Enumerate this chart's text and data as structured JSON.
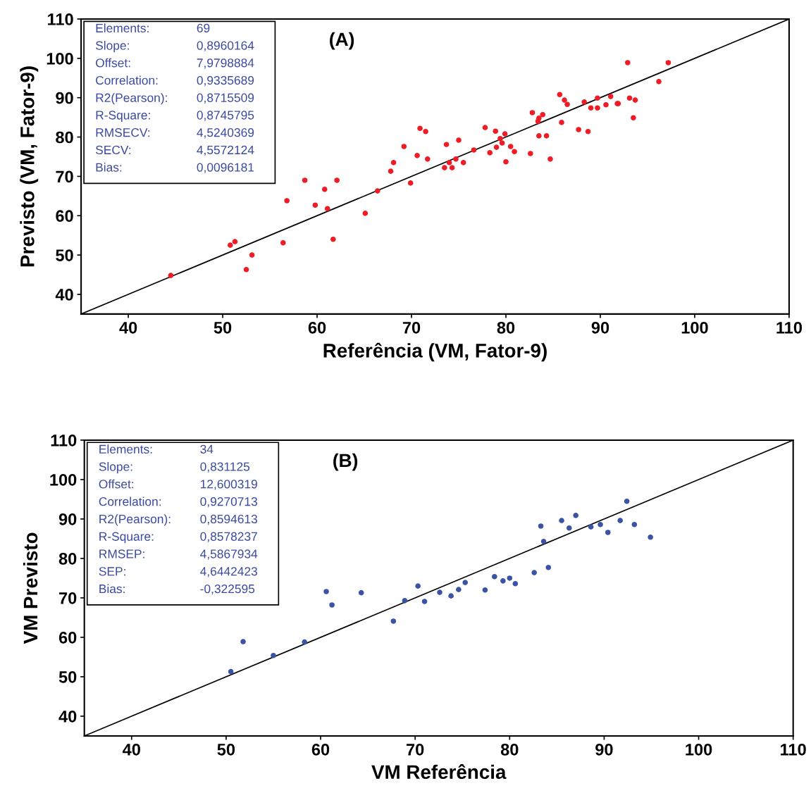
{
  "chart_data": [
    {
      "type": "scatter",
      "title": "(A)",
      "xlabel": "Referência (VM, Fator-9)",
      "ylabel": "Previsto (VM, Fator-9)",
      "xlim": [
        35,
        110
      ],
      "ylim": [
        35,
        110
      ],
      "xticks": [
        40,
        50,
        60,
        70,
        80,
        90,
        100,
        110
      ],
      "yticks": [
        40,
        50,
        60,
        70,
        80,
        90,
        100,
        110
      ],
      "grid": false,
      "legend": false,
      "marker": "circle",
      "annotations": [
        "Elements: 69",
        "Slope: 0,8960164",
        "Offset: 7,9798884",
        "Correlation: 0,9335689",
        "R2(Pearson): 0,8715509",
        "R-Square: 0,8745795",
        "RMSECV: 4,5240369",
        "SECV: 4,5572124",
        "Bias: 0,0096181"
      ],
      "series": [
        {
          "type": "line",
          "marker": "none",
          "color": "#000000",
          "x": [
            35,
            110
          ],
          "values": [
            35,
            110
          ]
        },
        {
          "color": "#ee1c25",
          "x": [
            44.5,
            50.8,
            51.3,
            52.5,
            53.1,
            56.4,
            56.8,
            58.7,
            59.8,
            60.8,
            61.1,
            61.7,
            62.1,
            65.1,
            66.4,
            67.8,
            68.1,
            69.2,
            69.9,
            70.6,
            70.9,
            71.5,
            71.7,
            73.7,
            73.5,
            74.0,
            74.3,
            74.7,
            75.0,
            75.5,
            76.6,
            77.8,
            78.3,
            78.9,
            79.0,
            79.4,
            79.6,
            79.9,
            80.0,
            80.5,
            80.9,
            82.6,
            82.8,
            83.4,
            83.5,
            83.5,
            83.9,
            84.3,
            84.7,
            85.7,
            85.9,
            86.2,
            86.5,
            87.7,
            88.3,
            88.7,
            89.0,
            89.7,
            89.7,
            90.6,
            91.1,
            91.8,
            91.9,
            92.9,
            93.1,
            93.5,
            93.7,
            96.2,
            97.2
          ],
          "values": [
            44.8,
            52.5,
            53.4,
            46.3,
            50.0,
            53.1,
            63.8,
            69.0,
            62.7,
            66.7,
            61.8,
            54.0,
            69.0,
            60.6,
            66.3,
            71.3,
            73.5,
            77.6,
            68.3,
            75.3,
            82.2,
            81.4,
            74.4,
            78.1,
            72.2,
            73.5,
            72.2,
            74.4,
            79.2,
            73.5,
            76.7,
            82.4,
            76.0,
            81.5,
            77.4,
            79.6,
            78.5,
            80.8,
            73.7,
            77.6,
            76.3,
            75.8,
            86.2,
            84.0,
            80.3,
            84.8,
            85.7,
            80.3,
            74.4,
            90.8,
            83.7,
            89.4,
            88.3,
            81.9,
            88.9,
            81.4,
            87.4,
            89.9,
            87.4,
            88.2,
            90.3,
            88.5,
            88.5,
            98.9,
            89.9,
            84.9,
            89.4,
            94.1,
            98.9
          ]
        }
      ]
    },
    {
      "type": "scatter",
      "title": "(B)",
      "xlabel": "VM Referência",
      "ylabel": "VM Previsto",
      "xlim": [
        35,
        110
      ],
      "ylim": [
        35,
        110
      ],
      "xticks": [
        40,
        50,
        60,
        70,
        80,
        90,
        100,
        110
      ],
      "yticks": [
        40,
        50,
        60,
        70,
        80,
        90,
        100,
        110
      ],
      "grid": false,
      "legend": false,
      "marker": "circle",
      "annotations": [
        "Elements: 34",
        "Slope: 0,831125",
        "Offset: 12,600319",
        "Correlation: 0,9270713",
        "R2(Pearson): 0,8594613",
        "R-Square: 0,8578237",
        "RMSEP: 4,5867934",
        "SEP: 4,6442423",
        "Bias: -0,322595"
      ],
      "series": [
        {
          "type": "line",
          "marker": "none",
          "color": "#000000",
          "x": [
            35,
            110
          ],
          "values": [
            35,
            110
          ]
        },
        {
          "color": "#3a53a4",
          "x": [
            50.5,
            51.8,
            55.0,
            58.3,
            60.6,
            61.2,
            64.3,
            67.7,
            68.9,
            70.3,
            71.0,
            72.6,
            73.8,
            74.6,
            75.3,
            77.4,
            78.4,
            79.3,
            80.0,
            80.6,
            82.6,
            83.3,
            83.6,
            84.1,
            85.5,
            86.3,
            87.0,
            88.6,
            89.6,
            90.4,
            91.7,
            92.4,
            93.2,
            94.9
          ],
          "values": [
            51.3,
            58.9,
            55.4,
            58.8,
            71.6,
            68.2,
            71.3,
            64.1,
            69.3,
            73.0,
            69.1,
            71.4,
            70.5,
            72.1,
            73.9,
            72.0,
            75.4,
            74.3,
            75.0,
            73.6,
            76.4,
            88.2,
            84.3,
            77.7,
            89.6,
            87.7,
            90.9,
            88.0,
            88.6,
            86.6,
            89.6,
            94.5,
            88.6,
            85.4
          ]
        }
      ]
    }
  ]
}
